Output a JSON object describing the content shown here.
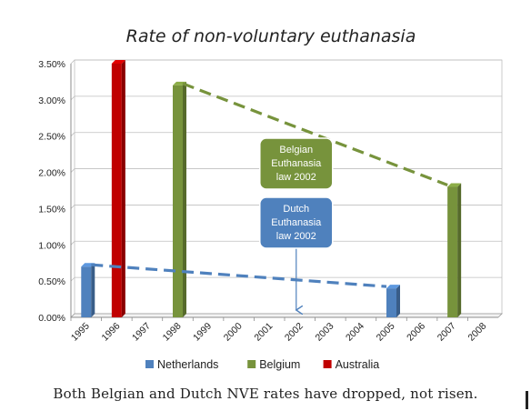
{
  "chart_data": {
    "type": "bar",
    "title": "Rate of non-voluntary euthanasia",
    "categories": [
      "1995",
      "1996",
      "1997",
      "1998",
      "1999",
      "2000",
      "2001",
      "2002",
      "2003",
      "2004",
      "2005",
      "2006",
      "2007",
      "2008"
    ],
    "series": [
      {
        "name": "Netherlands",
        "color": "#4F81BD",
        "points": [
          {
            "x": "1995",
            "y": 0.007
          },
          {
            "x": "2005",
            "y": 0.004
          }
        ]
      },
      {
        "name": "Belgium",
        "color": "#77933C",
        "points": [
          {
            "x": "1998",
            "y": 0.032
          },
          {
            "x": "2007",
            "y": 0.018
          }
        ]
      },
      {
        "name": "Australia",
        "color": "#C00000",
        "points": [
          {
            "x": "1996",
            "y": 0.035
          }
        ]
      }
    ],
    "trendlines": [
      {
        "series": "Netherlands",
        "from": {
          "x": "1995",
          "y": 0.007
        },
        "to": {
          "x": "2005",
          "y": 0.004
        },
        "style": "dashed"
      },
      {
        "series": "Belgium",
        "from": {
          "x": "1998",
          "y": 0.032
        },
        "to": {
          "x": "2007",
          "y": 0.018
        },
        "style": "dashed"
      }
    ],
    "yticks": [
      "0.00%",
      "0.50%",
      "1.00%",
      "1.50%",
      "2.00%",
      "2.50%",
      "3.00%",
      "3.50%"
    ],
    "ylim": [
      0,
      0.035
    ],
    "grid": true,
    "legend": "bottom",
    "annotations": [
      {
        "series": "Belgium",
        "lines": [
          "Belgian",
          "Euthanasia",
          "law 2002"
        ]
      },
      {
        "series": "Netherlands",
        "lines": [
          "Dutch",
          "Euthanasia",
          "law 2002"
        ],
        "arrow_to_x": "2002"
      }
    ]
  },
  "caption": "Both Belgian and Dutch NVE rates have dropped, not risen."
}
